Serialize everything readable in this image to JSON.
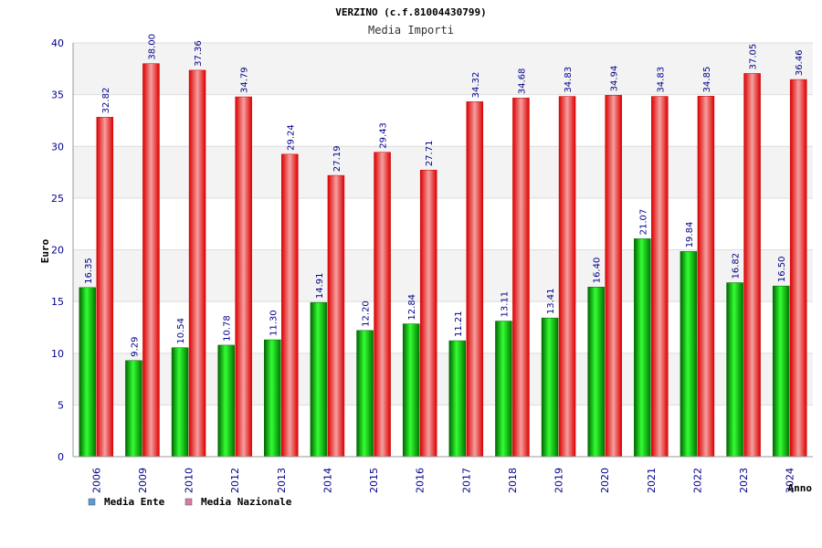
{
  "chart_data": {
    "type": "bar",
    "title": "VERZINO (c.f.81004430799)",
    "subtitle": "Media Importi",
    "ylabel": "Euro",
    "xlabel": "Anno",
    "ylim": [
      0,
      40
    ],
    "yticks": [
      0,
      5,
      10,
      15,
      20,
      25,
      30,
      35,
      40
    ],
    "grid": true,
    "legend_position": "bottom-left",
    "categories": [
      "2006",
      "2009",
      "2010",
      "2012",
      "2013",
      "2014",
      "2015",
      "2016",
      "2017",
      "2018",
      "2019",
      "2020",
      "2021",
      "2022",
      "2023",
      "2024"
    ],
    "series": [
      {
        "name": "Media Ente",
        "color": "#00aa00",
        "legend_color": "#5b9bd5",
        "values": [
          16.35,
          9.29,
          10.54,
          10.78,
          11.3,
          14.91,
          12.2,
          12.84,
          11.21,
          13.11,
          13.41,
          16.4,
          21.07,
          19.84,
          16.82,
          16.5
        ],
        "labels": [
          "16.35",
          "9.29",
          "10.54",
          "10.78",
          "11.30",
          "14.91",
          "12.20",
          "12.84",
          "11.21",
          "13.11",
          "13.41",
          "16.40",
          "21.07",
          "19.84",
          "16.82",
          "16.50"
        ]
      },
      {
        "name": "Media Nazionale",
        "color": "#ee0000",
        "legend_color": "#d97ba6",
        "values": [
          32.82,
          38.0,
          37.36,
          34.79,
          29.24,
          27.19,
          29.43,
          27.71,
          34.32,
          34.68,
          34.83,
          34.94,
          34.83,
          34.85,
          37.05,
          36.46
        ],
        "labels": [
          "32.82",
          "38.00",
          "37.36",
          "34.79",
          "29.24",
          "27.19",
          "29.43",
          "27.71",
          "34.32",
          "34.68",
          "34.83",
          "34.94",
          "34.83",
          "34.85",
          "37.05",
          "36.46"
        ]
      }
    ]
  }
}
